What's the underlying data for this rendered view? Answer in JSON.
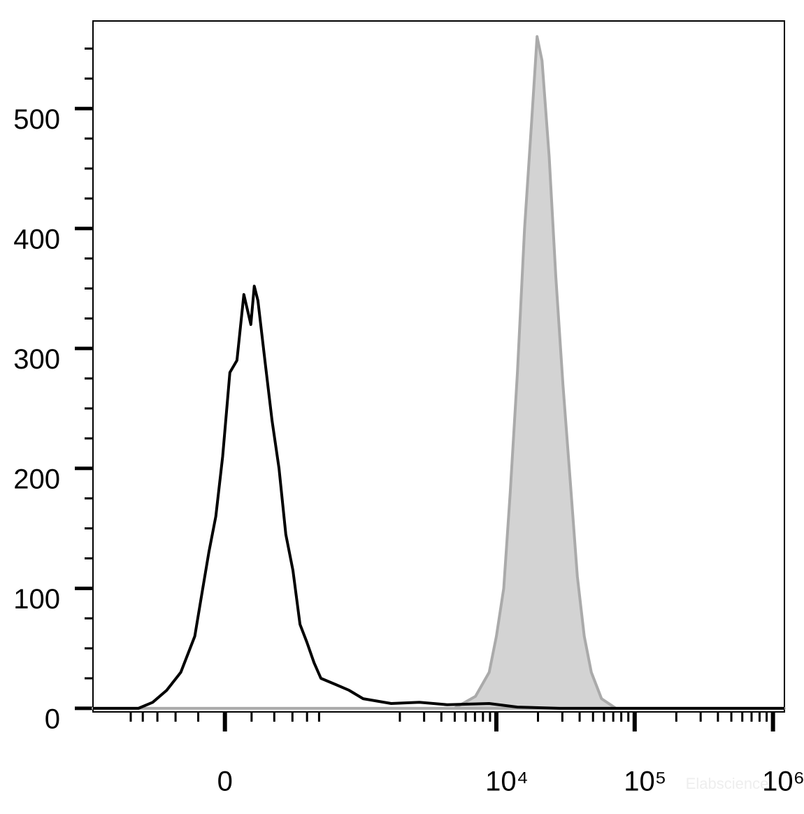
{
  "chart_data": {
    "type": "histogram-overlay",
    "watermark": "Elabscience",
    "xscale": "arcsinh",
    "xlim": [
      -968,
      1210000
    ],
    "xticks": [
      {
        "value": 0,
        "label": "0"
      },
      {
        "value": 10000,
        "label": "10⁴"
      },
      {
        "value": 100000,
        "label": "10⁵"
      },
      {
        "value": 1000000,
        "label": "10⁶"
      }
    ],
    "xminorticks": [
      -500,
      -400,
      -300,
      -200,
      -100,
      100,
      200,
      300,
      400,
      500,
      2000,
      3000,
      4000,
      5000,
      6000,
      7000,
      8000,
      9000,
      20000,
      30000,
      40000,
      50000,
      60000,
      70000,
      80000,
      90000,
      200000,
      300000,
      400000,
      500000,
      600000,
      700000,
      800000,
      900000
    ],
    "ylim": [
      -3,
      573
    ],
    "yticks": [
      0,
      100,
      200,
      300,
      400,
      500
    ],
    "yminorticks": [
      25,
      50,
      75,
      125,
      150,
      175,
      225,
      250,
      275,
      325,
      350,
      375,
      425,
      450,
      475,
      525,
      550
    ],
    "series": [
      {
        "color": "#aaaaaa",
        "fill": "#d3d3d3",
        "x": [
          -968,
          4970,
          7060,
          8870,
          10000,
          11300,
          12600,
          14200,
          16000,
          18000,
          19700,
          21400,
          24100,
          26900,
          30300,
          34200,
          38500,
          43200,
          48600,
          57600,
          73200,
          1210000
        ],
        "values": [
          0,
          0,
          10,
          30,
          60,
          100,
          180,
          280,
          400,
          490,
          560,
          540,
          460,
          360,
          270,
          190,
          110,
          60,
          30,
          8,
          0,
          0
        ]
      },
      {
        "color": "#000000",
        "x": [
          -968,
          -434,
          -330,
          -246,
          -175,
          -114,
          -86,
          -59,
          -33,
          -8,
          18,
          44,
          70,
          97,
          111,
          126,
          156,
          189,
          224,
          261,
          303,
          349,
          399,
          456,
          517,
          665,
          848,
          1077,
          1731,
          2770,
          4400,
          8870,
          14200,
          28600,
          1210000
        ],
        "values": [
          0,
          0,
          5,
          15,
          30,
          60,
          95,
          130,
          160,
          210,
          280,
          290,
          345,
          320,
          352,
          340,
          290,
          240,
          200,
          145,
          115,
          70,
          55,
          38,
          25,
          20,
          15,
          8,
          4,
          5,
          3,
          4,
          1,
          0,
          0
        ]
      }
    ]
  }
}
